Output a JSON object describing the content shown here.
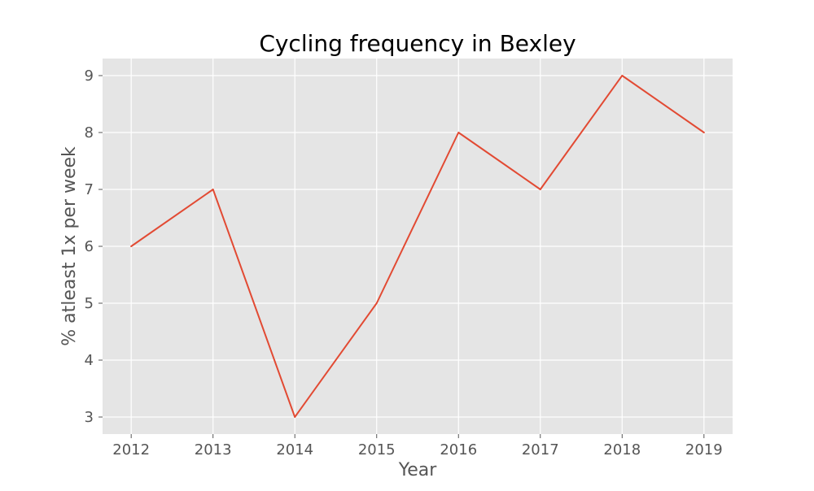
{
  "chart_data": {
    "type": "line",
    "title": "Cycling frequency in Bexley",
    "xlabel": "Year",
    "ylabel": "% atleast 1x per week",
    "x": [
      2012,
      2013,
      2014,
      2015,
      2016,
      2017,
      2018,
      2019
    ],
    "series": [
      {
        "values": [
          6,
          7,
          3,
          5,
          8,
          7,
          9,
          8
        ],
        "color": "#E24A33"
      }
    ],
    "x_ticks": [
      2012,
      2013,
      2014,
      2015,
      2016,
      2017,
      2018,
      2019
    ],
    "y_ticks": [
      3,
      4,
      5,
      6,
      7,
      8,
      9
    ],
    "xlim": [
      2011.65,
      2019.35
    ],
    "ylim": [
      2.7,
      9.3
    ],
    "grid": true,
    "style": {
      "plot_background": "#E5E5E5",
      "grid_color": "#FFFFFF",
      "text_color": "#555555",
      "title_color": "#000000"
    }
  }
}
